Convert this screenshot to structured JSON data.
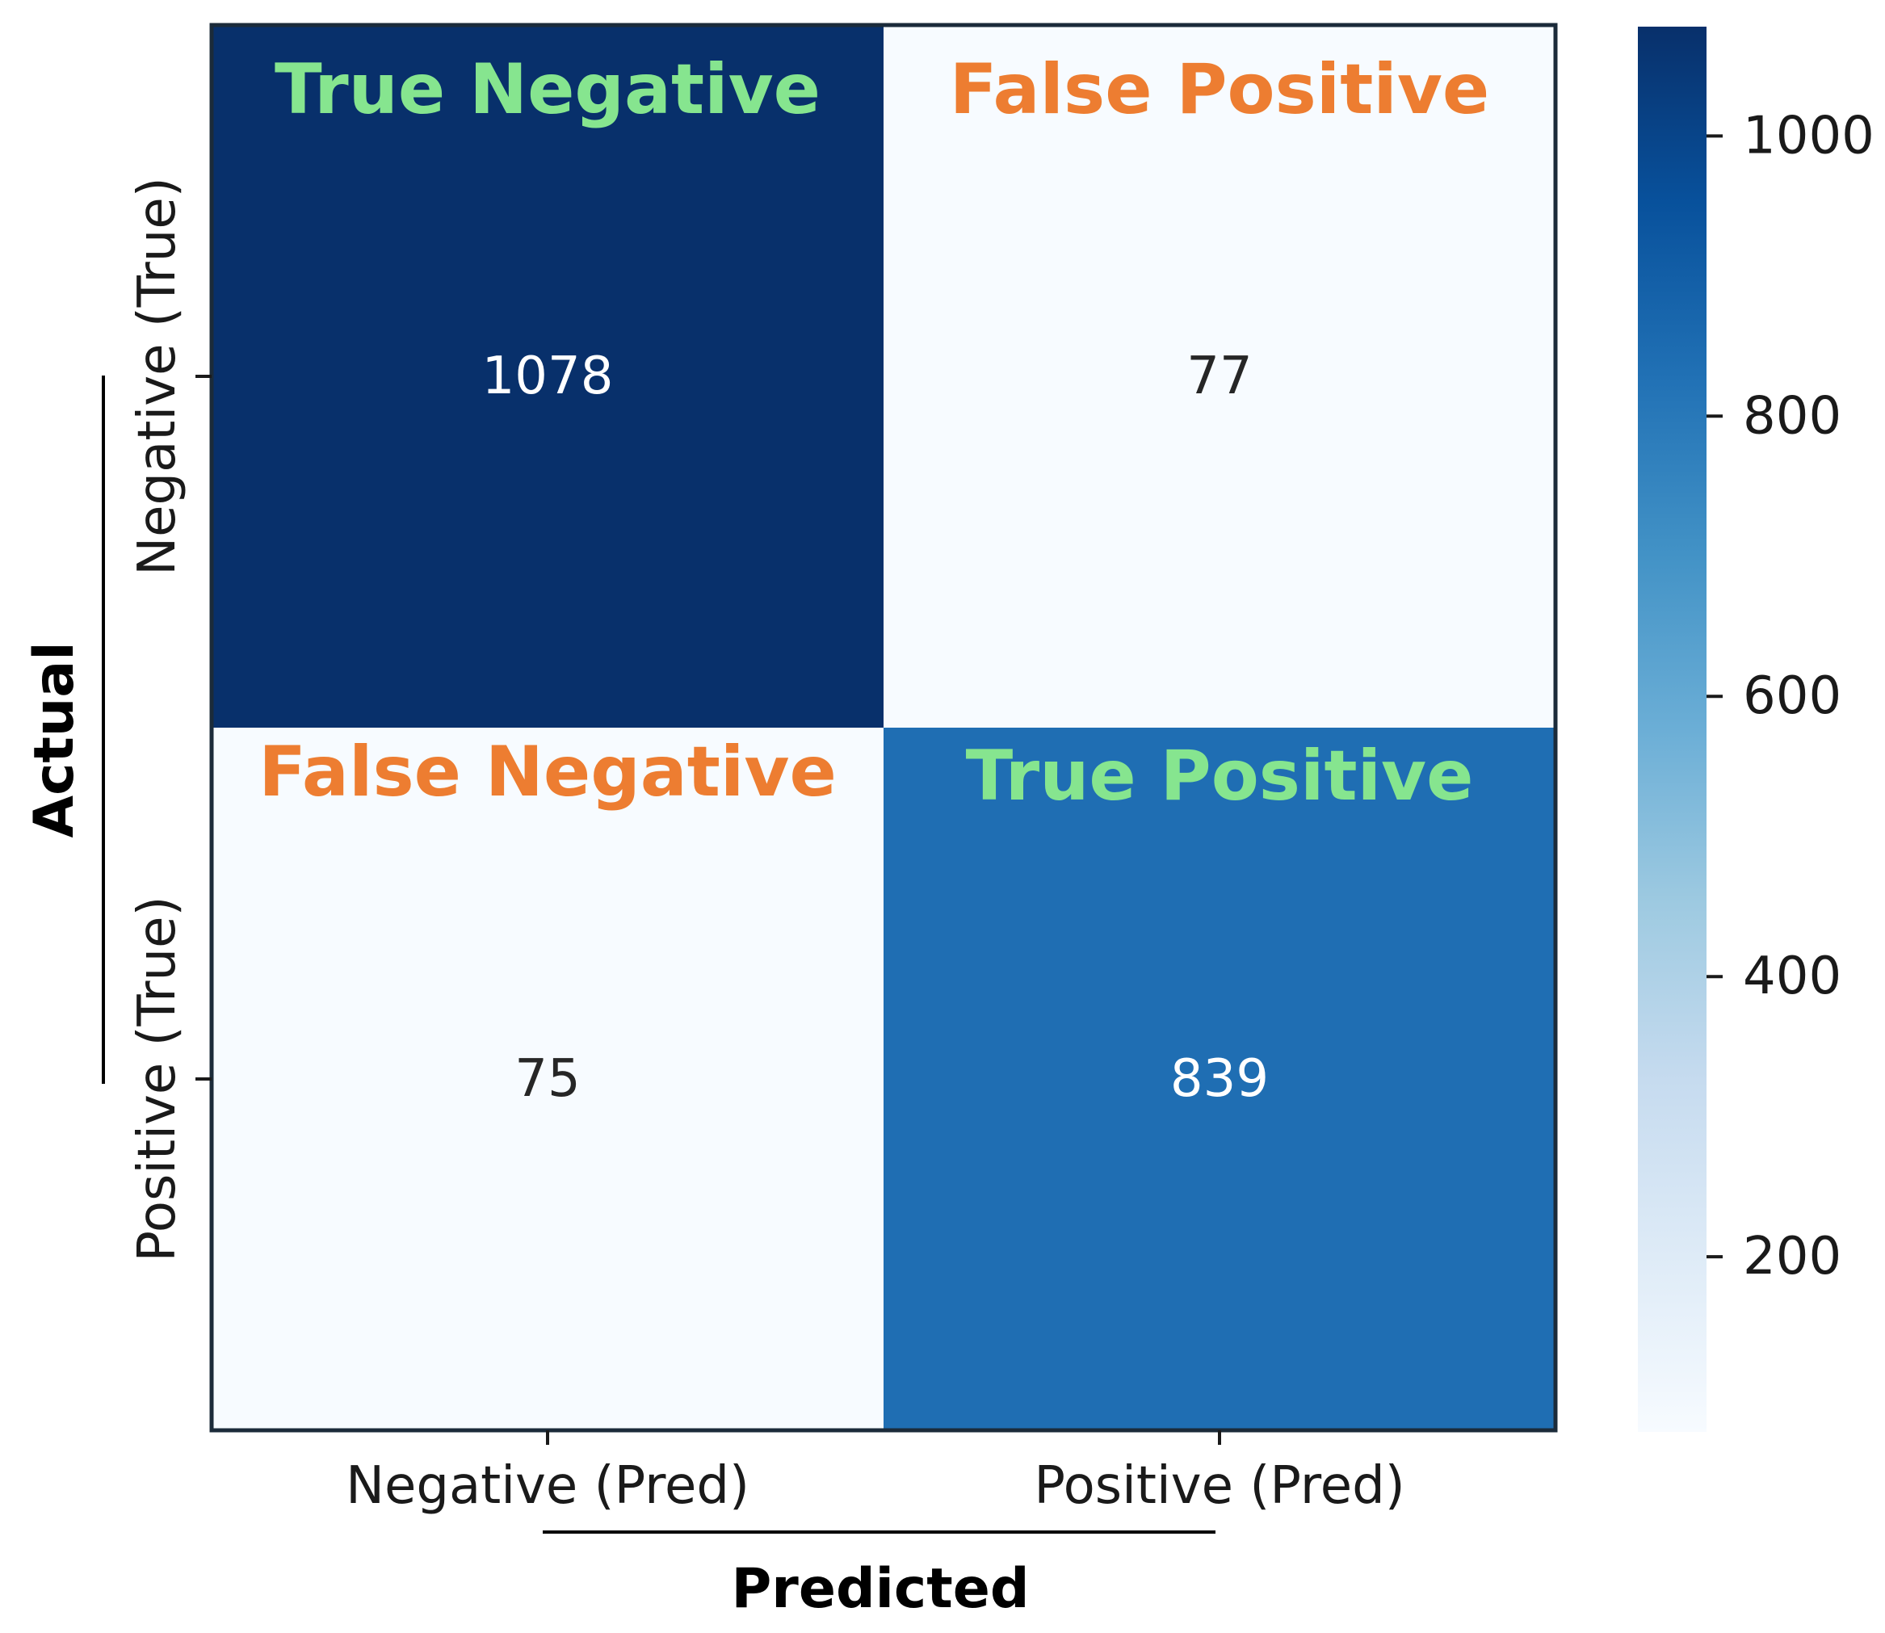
{
  "chart_data": {
    "type": "heatmap",
    "xlabel": "Predicted",
    "ylabel": "Actual",
    "x_categories": [
      "Negative (Pred)",
      "Positive (Pred)"
    ],
    "y_categories": [
      "Negative (True)",
      "Positive (True)"
    ],
    "values": [
      [
        1078,
        77
      ],
      [
        75,
        839
      ]
    ],
    "quadrant_labels": [
      [
        "True Negative",
        "False Positive"
      ],
      [
        "False Negative",
        "True Positive"
      ]
    ],
    "quadrant_label_colors": {
      "correct": "#86e58f",
      "incorrect": "#ed7d31"
    },
    "colorbar": {
      "colormap": "Blues",
      "range": [
        75,
        1078
      ],
      "ticks": [
        200,
        400,
        600,
        800,
        1000
      ]
    }
  }
}
